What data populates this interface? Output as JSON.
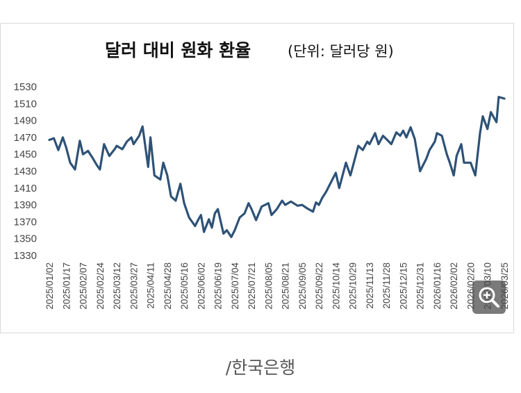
{
  "chart_data": {
    "type": "line",
    "title": "달러 대비 원화 환율",
    "subtitle": "(단위: 달러당 원)",
    "xlabel": "",
    "ylabel": "",
    "ylim": [
      1330,
      1530
    ],
    "yticks": [
      "1530",
      "1510",
      "1490",
      "1470",
      "1450",
      "1430",
      "1410",
      "1390",
      "1370",
      "1350",
      "1330"
    ],
    "xticks": [
      "2025/01/02",
      "2025/01/17",
      "2025/02/07",
      "2025/02/24",
      "2025/03/12",
      "2025/03/27",
      "2025/04/11",
      "2025/04/28",
      "2025/05/16",
      "2025/06/02",
      "2025/06/19",
      "2025/07/04",
      "2025/07/21",
      "2025/08/05",
      "2025/08/21",
      "2025/09/05",
      "2025/09/22",
      "2025/10/14",
      "2025/10/29",
      "2025/11/13",
      "2025/11/28",
      "2025/12/15",
      "2025/12/31",
      "2026/01/16",
      "2026/02/02",
      "2026/02/20",
      "2026/03/10",
      "2026/03/25"
    ],
    "grid": false,
    "legend": "none",
    "line_color": "#2e5277",
    "series": [
      {
        "x": [
          "2025/01/02",
          "2025/01/06",
          "2025/01/10",
          "2025/01/14",
          "2025/01/17",
          "2025/01/22",
          "2025/01/28",
          "2025/02/03",
          "2025/02/07",
          "2025/02/12",
          "2025/02/17",
          "2025/02/21",
          "2025/02/24",
          "2025/02/28",
          "2025/03/05",
          "2025/03/10",
          "2025/03/12",
          "2025/03/17",
          "2025/03/21",
          "2025/03/25",
          "2025/03/27",
          "2025/04/01",
          "2025/04/04",
          "2025/04/09",
          "2025/04/11",
          "2025/04/15",
          "2025/04/21",
          "2025/04/24",
          "2025/04/28",
          "2025/05/02",
          "2025/05/07",
          "2025/05/12",
          "2025/05/16",
          "2025/05/21",
          "2025/05/27",
          "2025/05/30",
          "2025/06/02",
          "2025/06/05",
          "2025/06/10",
          "2025/06/13",
          "2025/06/16",
          "2025/06/19",
          "2025/06/24",
          "2025/06/27",
          "2025/07/01",
          "2025/07/04",
          "2025/07/09",
          "2025/07/14",
          "2025/07/18",
          "2025/07/21",
          "2025/07/25",
          "2025/07/30",
          "2025/08/05",
          "2025/08/08",
          "2025/08/13",
          "2025/08/18",
          "2025/08/21",
          "2025/08/26",
          "2025/09/01",
          "2025/09/05",
          "2025/09/10",
          "2025/09/16",
          "2025/09/19",
          "2025/09/22",
          "2025/09/26",
          "2025/10/01",
          "2025/10/14",
          "2025/10/17",
          "2025/10/23",
          "2025/10/27",
          "2025/10/29",
          "2025/11/03",
          "2025/11/07",
          "2025/11/11",
          "2025/11/13",
          "2025/11/18",
          "2025/11/21",
          "2025/11/25",
          "2025/11/28",
          "2025/12/03",
          "2025/12/08",
          "2025/12/12",
          "2025/12/15",
          "2025/12/18",
          "2025/12/22",
          "2025/12/26",
          "2025/12/31",
          "2026/01/06",
          "2026/01/09",
          "2026/01/14",
          "2026/01/16",
          "2026/01/21",
          "2026/01/26",
          "2026/01/29",
          "2026/02/02",
          "2026/02/05",
          "2026/02/10",
          "2026/02/13",
          "2026/02/20",
          "2026/02/25",
          "2026/03/02",
          "2026/03/05",
          "2026/03/10",
          "2026/03/13",
          "2026/03/18",
          "2026/03/20",
          "2026/03/25"
        ],
        "values": [
          1467,
          1469,
          1455,
          1470,
          1458,
          1440,
          1432,
          1466,
          1450,
          1454,
          1445,
          1437,
          1432,
          1462,
          1448,
          1456,
          1460,
          1456,
          1465,
          1470,
          1462,
          1472,
          1483,
          1435,
          1470,
          1425,
          1420,
          1440,
          1425,
          1400,
          1395,
          1415,
          1392,
          1375,
          1365,
          1372,
          1378,
          1358,
          1373,
          1363,
          1380,
          1385,
          1356,
          1360,
          1352,
          1360,
          1375,
          1380,
          1392,
          1385,
          1372,
          1388,
          1392,
          1378,
          1385,
          1395,
          1390,
          1394,
          1389,
          1390,
          1386,
          1382,
          1393,
          1390,
          1398,
          1405,
          1428,
          1410,
          1440,
          1425,
          1435,
          1460,
          1455,
          1465,
          1462,
          1475,
          1462,
          1472,
          1468,
          1462,
          1476,
          1472,
          1478,
          1470,
          1482,
          1468,
          1430,
          1445,
          1455,
          1465,
          1475,
          1472,
          1450,
          1440,
          1425,
          1448,
          1462,
          1440,
          1440,
          1425,
          1475,
          1495,
          1480,
          1500,
          1488,
          1518,
          1516
        ]
      }
    ]
  },
  "source_note": "/한국은행",
  "zoom_icon": "zoom-in-icon"
}
